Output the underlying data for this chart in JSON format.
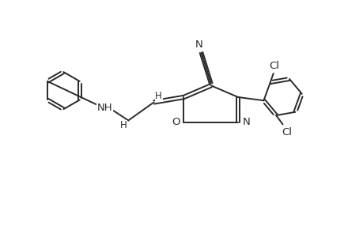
{
  "background_color": "#ffffff",
  "line_color": "#2a2a2a",
  "line_width": 1.4,
  "font_size_atom": 9.5,
  "font_size_H": 8.5,
  "figsize": [
    4.6,
    3.0
  ],
  "dpi": 100,
  "xlim": [
    0,
    9.2
  ],
  "ylim": [
    0,
    6.0
  ]
}
